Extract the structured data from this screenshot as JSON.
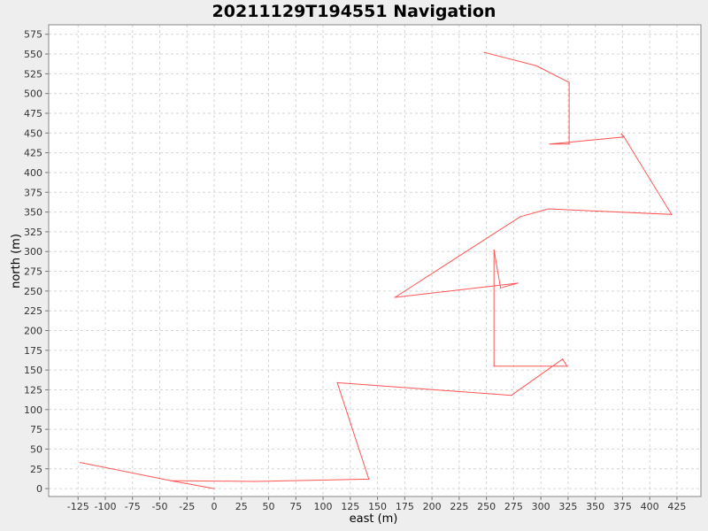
{
  "chart_data": {
    "type": "line",
    "title": "20211129T194551 Navigation",
    "xlabel": "east (m)",
    "ylabel": "north (m)",
    "xlim": [
      -152,
      447
    ],
    "ylim": [
      -10,
      587
    ],
    "xticks": [
      -125,
      -100,
      -75,
      -50,
      -25,
      0,
      25,
      50,
      75,
      100,
      125,
      150,
      175,
      200,
      225,
      250,
      275,
      300,
      325,
      350,
      375,
      400,
      425
    ],
    "yticks": [
      0,
      25,
      50,
      75,
      100,
      125,
      150,
      175,
      200,
      225,
      250,
      275,
      300,
      325,
      350,
      375,
      400,
      425,
      450,
      475,
      500,
      525,
      550,
      575
    ],
    "grid": true,
    "legend": "none",
    "series": [
      {
        "color": "#ff5555",
        "points": [
          {
            "x": 0,
            "y": 0
          },
          {
            "x": -40,
            "y": 10
          },
          {
            "x": -123,
            "y": 33
          },
          {
            "x": -40,
            "y": 10
          },
          {
            "x": 37,
            "y": 9
          },
          {
            "x": 142,
            "y": 12
          },
          {
            "x": 113,
            "y": 134
          },
          {
            "x": 273,
            "y": 118
          },
          {
            "x": 320,
            "y": 164
          },
          {
            "x": 324,
            "y": 155
          },
          {
            "x": 257,
            "y": 155
          },
          {
            "x": 257,
            "y": 302
          },
          {
            "x": 263,
            "y": 254
          },
          {
            "x": 279,
            "y": 260
          },
          {
            "x": 166,
            "y": 242
          },
          {
            "x": 281,
            "y": 344
          },
          {
            "x": 307,
            "y": 354
          },
          {
            "x": 420,
            "y": 347
          },
          {
            "x": 376,
            "y": 446
          },
          {
            "x": 374,
            "y": 449
          },
          {
            "x": 376,
            "y": 445
          },
          {
            "x": 308,
            "y": 436
          },
          {
            "x": 326,
            "y": 436
          },
          {
            "x": 326,
            "y": 514
          },
          {
            "x": 296,
            "y": 535
          },
          {
            "x": 248,
            "y": 552
          }
        ]
      }
    ]
  }
}
